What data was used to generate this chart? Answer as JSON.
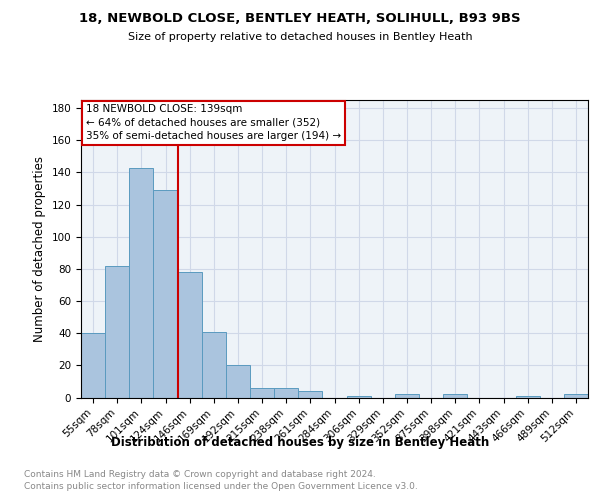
{
  "title1": "18, NEWBOLD CLOSE, BENTLEY HEATH, SOLIHULL, B93 9BS",
  "title2": "Size of property relative to detached houses in Bentley Heath",
  "xlabel": "Distribution of detached houses by size in Bentley Heath",
  "ylabel": "Number of detached properties",
  "footnote1": "Contains HM Land Registry data © Crown copyright and database right 2024.",
  "footnote2": "Contains public sector information licensed under the Open Government Licence v3.0.",
  "bar_labels": [
    "55sqm",
    "78sqm",
    "101sqm",
    "124sqm",
    "146sqm",
    "169sqm",
    "192sqm",
    "215sqm",
    "238sqm",
    "261sqm",
    "284sqm",
    "306sqm",
    "329sqm",
    "352sqm",
    "375sqm",
    "398sqm",
    "421sqm",
    "443sqm",
    "466sqm",
    "489sqm",
    "512sqm"
  ],
  "bar_values": [
    40,
    82,
    143,
    129,
    78,
    41,
    20,
    6,
    6,
    4,
    0,
    1,
    0,
    2,
    0,
    2,
    0,
    0,
    1,
    0,
    2
  ],
  "bar_color": "#aac4de",
  "bar_edge_color": "#5a9abf",
  "vline_color": "#cc0000",
  "box_edge_color": "#cc0000",
  "annotation_text1": "18 NEWBOLD CLOSE: 139sqm",
  "annotation_text2": "← 64% of detached houses are smaller (352)",
  "annotation_text3": "35% of semi-detached houses are larger (194) →",
  "ylim": [
    0,
    185
  ],
  "yticks": [
    0,
    20,
    40,
    60,
    80,
    100,
    120,
    140,
    160,
    180
  ],
  "grid_color": "#d0d8e8",
  "axes_facecolor": "#eef3f8"
}
